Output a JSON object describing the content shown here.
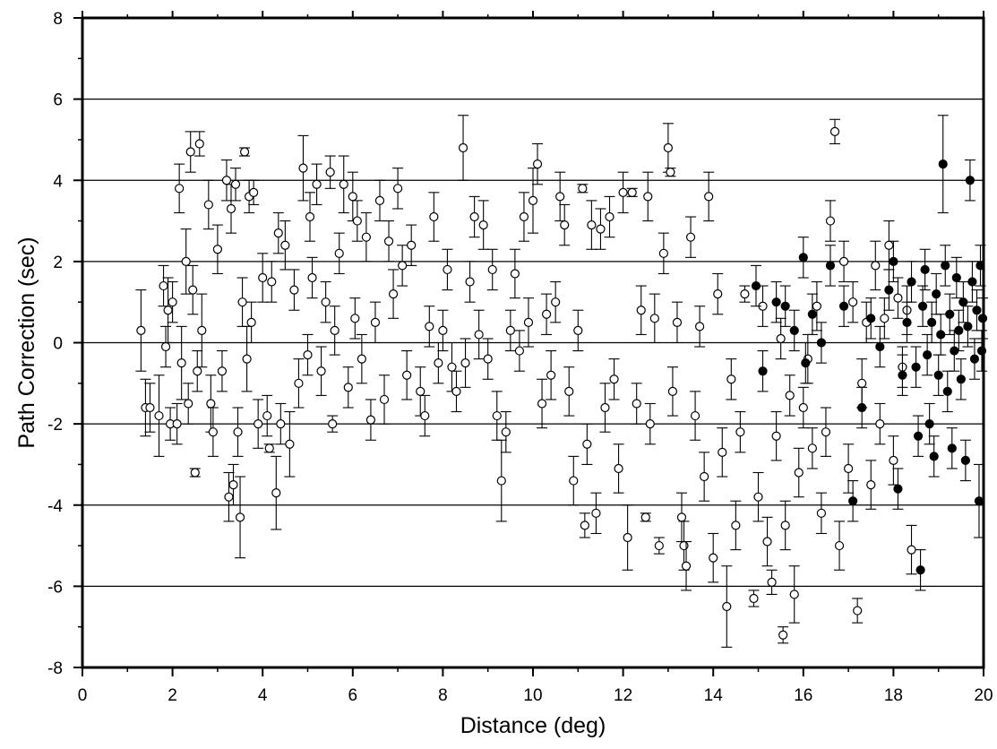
{
  "chart_data": {
    "type": "scatter",
    "title": "",
    "xlabel": "Distance (deg)",
    "ylabel": "Path Correction (sec)",
    "xlim": [
      0,
      20
    ],
    "ylim": [
      -8,
      8
    ],
    "x_ticks": [
      0,
      2,
      4,
      6,
      8,
      10,
      12,
      14,
      16,
      18,
      20
    ],
    "y_ticks": [
      -8,
      -6,
      -4,
      -2,
      0,
      2,
      4,
      6,
      8
    ],
    "grid": "horizontal",
    "legend": "none",
    "marker_colors": {
      "open": "#ffffff",
      "filled": "#000000",
      "line": "#000000"
    },
    "series": [
      {
        "marker": "open circle with error bars",
        "points": [
          [
            1.3,
            0.3,
            1.0
          ],
          [
            1.4,
            -1.6,
            0.7
          ],
          [
            1.5,
            -1.6,
            0.6
          ],
          [
            1.7,
            -1.8,
            1.0
          ],
          [
            1.8,
            1.4,
            0.5
          ],
          [
            1.85,
            -0.1,
            0.5
          ],
          [
            1.9,
            0.8,
            0.8
          ],
          [
            1.95,
            -2.0,
            0.4
          ],
          [
            2.0,
            1.0,
            0.5
          ],
          [
            2.1,
            -2.0,
            0.5
          ],
          [
            2.15,
            3.8,
            0.6
          ],
          [
            2.2,
            -0.5,
            0.9
          ],
          [
            2.3,
            2.0,
            0.8
          ],
          [
            2.35,
            -1.5,
            0.5
          ],
          [
            2.4,
            4.7,
            0.5
          ],
          [
            2.45,
            1.3,
            0.6
          ],
          [
            2.5,
            -3.2,
            0.1
          ],
          [
            2.55,
            -0.7,
            0.5
          ],
          [
            2.6,
            4.9,
            0.3
          ],
          [
            2.65,
            0.3,
            0.9
          ],
          [
            2.8,
            3.4,
            0.6
          ],
          [
            2.85,
            -1.5,
            0.7
          ],
          [
            2.9,
            -2.2,
            0.6
          ],
          [
            3.0,
            2.3,
            0.6
          ],
          [
            3.1,
            -0.7,
            0.5
          ],
          [
            3.2,
            4.0,
            0.5
          ],
          [
            3.25,
            -3.8,
            0.6
          ],
          [
            3.3,
            3.3,
            0.6
          ],
          [
            3.35,
            -3.5,
            0.5
          ],
          [
            3.4,
            3.9,
            0.4
          ],
          [
            3.45,
            -2.2,
            0.6
          ],
          [
            3.5,
            -4.3,
            1.0
          ],
          [
            3.55,
            1.0,
            0.6
          ],
          [
            3.6,
            4.7,
            0.1
          ],
          [
            3.65,
            -0.4,
            0.8
          ],
          [
            3.7,
            3.6,
            0.4
          ],
          [
            3.75,
            0.5,
            0.5
          ],
          [
            3.8,
            3.7,
            0.3
          ],
          [
            3.9,
            -2.0,
            0.6
          ],
          [
            4.0,
            1.6,
            0.6
          ],
          [
            4.1,
            -1.8,
            0.5
          ],
          [
            4.15,
            -2.6,
            0.1
          ],
          [
            4.2,
            1.5,
            0.5
          ],
          [
            4.3,
            -3.7,
            0.9
          ],
          [
            4.35,
            2.7,
            0.5
          ],
          [
            4.4,
            -2.0,
            0.5
          ],
          [
            4.5,
            2.4,
            0.6
          ],
          [
            4.6,
            -2.5,
            0.8
          ],
          [
            4.7,
            1.3,
            0.5
          ],
          [
            4.8,
            -1.0,
            0.6
          ],
          [
            4.9,
            4.3,
            0.8
          ],
          [
            5.0,
            -0.3,
            0.5
          ],
          [
            5.05,
            3.1,
            0.6
          ],
          [
            5.1,
            1.6,
            0.5
          ],
          [
            5.2,
            3.9,
            0.5
          ],
          [
            5.3,
            -0.7,
            0.6
          ],
          [
            5.4,
            1.0,
            0.5
          ],
          [
            5.5,
            4.2,
            0.4
          ],
          [
            5.55,
            -2.0,
            0.2
          ],
          [
            5.6,
            0.3,
            0.6
          ],
          [
            5.7,
            2.2,
            0.5
          ],
          [
            5.8,
            3.9,
            0.7
          ],
          [
            5.9,
            -1.1,
            0.5
          ],
          [
            6.0,
            3.6,
            0.6
          ],
          [
            6.05,
            0.6,
            0.5
          ],
          [
            6.1,
            3.0,
            0.5
          ],
          [
            6.2,
            -0.4,
            0.6
          ],
          [
            6.3,
            2.6,
            0.6
          ],
          [
            6.4,
            -1.9,
            0.5
          ],
          [
            6.5,
            0.5,
            0.5
          ],
          [
            6.6,
            3.5,
            0.5
          ],
          [
            6.7,
            -1.4,
            0.6
          ],
          [
            6.8,
            2.5,
            0.5
          ],
          [
            6.9,
            1.2,
            0.6
          ],
          [
            7.0,
            3.8,
            0.5
          ],
          [
            7.1,
            1.9,
            0.5
          ],
          [
            7.2,
            -0.8,
            0.6
          ],
          [
            7.3,
            2.4,
            0.5
          ],
          [
            7.5,
            -1.2,
            0.6
          ],
          [
            7.6,
            -1.8,
            0.5
          ],
          [
            7.7,
            0.4,
            0.5
          ],
          [
            7.8,
            3.1,
            0.6
          ],
          [
            7.9,
            -0.5,
            0.5
          ],
          [
            8.0,
            0.3,
            0.5
          ],
          [
            8.1,
            1.8,
            0.5
          ],
          [
            8.2,
            -0.6,
            0.6
          ],
          [
            8.3,
            -1.2,
            0.5
          ],
          [
            8.45,
            4.8,
            0.8
          ],
          [
            8.5,
            -0.5,
            0.6
          ],
          [
            8.6,
            1.5,
            0.5
          ],
          [
            8.7,
            3.1,
            0.5
          ],
          [
            8.8,
            0.2,
            0.6
          ],
          [
            8.9,
            2.9,
            0.6
          ],
          [
            9.0,
            -0.4,
            0.5
          ],
          [
            9.1,
            1.8,
            0.5
          ],
          [
            9.2,
            -1.8,
            0.6
          ],
          [
            9.3,
            -3.4,
            1.0
          ],
          [
            9.4,
            -2.2,
            0.5
          ],
          [
            9.5,
            0.3,
            0.5
          ],
          [
            9.6,
            1.7,
            0.6
          ],
          [
            9.7,
            -0.2,
            0.5
          ],
          [
            9.8,
            3.1,
            0.6
          ],
          [
            9.9,
            0.5,
            0.6
          ],
          [
            10.0,
            3.5,
            0.8
          ],
          [
            10.1,
            4.4,
            0.5
          ],
          [
            10.2,
            -1.5,
            0.6
          ],
          [
            10.3,
            0.7,
            0.5
          ],
          [
            10.4,
            -0.8,
            0.6
          ],
          [
            10.5,
            1.0,
            0.5
          ],
          [
            10.6,
            3.6,
            0.6
          ],
          [
            10.7,
            2.9,
            0.5
          ],
          [
            10.8,
            -1.2,
            0.6
          ],
          [
            10.9,
            -3.4,
            0.6
          ],
          [
            11.0,
            0.3,
            0.5
          ],
          [
            11.1,
            3.8,
            0.1
          ],
          [
            11.15,
            -4.5,
            0.3
          ],
          [
            11.2,
            -2.5,
            0.5
          ],
          [
            11.3,
            2.9,
            0.6
          ],
          [
            11.4,
            -4.2,
            0.5
          ],
          [
            11.5,
            2.8,
            0.5
          ],
          [
            11.6,
            -1.6,
            0.6
          ],
          [
            11.7,
            3.1,
            0.5
          ],
          [
            11.8,
            -0.9,
            0.5
          ],
          [
            11.9,
            -3.1,
            0.6
          ],
          [
            12.0,
            3.7,
            0.5
          ],
          [
            12.1,
            -4.8,
            0.8
          ],
          [
            12.2,
            3.7,
            0.1
          ],
          [
            12.3,
            -1.5,
            0.5
          ],
          [
            12.4,
            0.8,
            0.6
          ],
          [
            12.5,
            -4.3,
            0.1
          ],
          [
            12.55,
            3.6,
            0.6
          ],
          [
            12.6,
            -2.0,
            0.5
          ],
          [
            12.7,
            0.6,
            0.6
          ],
          [
            12.8,
            -5.0,
            0.2
          ],
          [
            12.9,
            2.2,
            0.5
          ],
          [
            13.0,
            4.8,
            0.6
          ],
          [
            13.05,
            4.2,
            0.1
          ],
          [
            13.1,
            -1.2,
            0.6
          ],
          [
            13.2,
            0.5,
            0.5
          ],
          [
            13.3,
            -4.3,
            0.6
          ],
          [
            13.35,
            -5.0,
            0.6
          ],
          [
            13.4,
            -5.5,
            0.6
          ],
          [
            13.5,
            2.6,
            0.5
          ],
          [
            13.6,
            -1.8,
            0.6
          ],
          [
            13.7,
            0.4,
            0.5
          ],
          [
            13.8,
            -3.3,
            0.6
          ],
          [
            13.9,
            3.6,
            0.6
          ],
          [
            14.0,
            -5.3,
            0.6
          ],
          [
            14.1,
            1.2,
            0.5
          ],
          [
            14.2,
            -2.7,
            0.6
          ],
          [
            14.3,
            -6.5,
            1.0
          ],
          [
            14.4,
            -0.9,
            0.5
          ],
          [
            14.5,
            -4.5,
            0.6
          ],
          [
            14.6,
            -2.2,
            0.5
          ],
          [
            14.7,
            1.2,
            0.2
          ],
          [
            14.9,
            -6.3,
            0.2
          ],
          [
            15.0,
            -3.8,
            0.6
          ],
          [
            15.1,
            0.9,
            0.5
          ],
          [
            15.2,
            -4.9,
            0.6
          ],
          [
            15.3,
            -5.9,
            0.3
          ],
          [
            15.4,
            -2.3,
            0.6
          ],
          [
            15.5,
            0.1,
            0.5
          ],
          [
            15.55,
            -7.2,
            0.2
          ],
          [
            15.6,
            -4.5,
            0.6
          ],
          [
            15.7,
            -1.3,
            0.5
          ],
          [
            15.8,
            -6.2,
            0.7
          ],
          [
            15.9,
            -3.2,
            0.6
          ],
          [
            16.0,
            -1.6,
            0.5
          ],
          [
            16.1,
            -0.4,
            0.6
          ],
          [
            16.2,
            -2.6,
            0.5
          ],
          [
            16.3,
            0.9,
            0.6
          ],
          [
            16.4,
            -4.2,
            0.5
          ],
          [
            16.5,
            -2.2,
            0.6
          ],
          [
            16.6,
            3.0,
            0.5
          ],
          [
            16.7,
            5.2,
            0.3
          ],
          [
            16.8,
            -5.0,
            0.6
          ],
          [
            16.9,
            2.0,
            0.5
          ],
          [
            17.0,
            -3.1,
            0.6
          ],
          [
            17.1,
            1.0,
            0.5
          ],
          [
            17.2,
            -6.6,
            0.3
          ],
          [
            17.3,
            -1.0,
            0.6
          ],
          [
            17.4,
            0.5,
            0.5
          ],
          [
            17.5,
            -3.5,
            0.6
          ],
          [
            17.6,
            1.9,
            0.6
          ],
          [
            17.7,
            -2.0,
            0.5
          ],
          [
            17.8,
            0.6,
            0.5
          ],
          [
            17.9,
            2.4,
            0.6
          ],
          [
            18.0,
            -2.9,
            0.6
          ],
          [
            18.1,
            1.1,
            0.5
          ],
          [
            18.2,
            -0.6,
            0.5
          ],
          [
            18.3,
            0.8,
            0.6
          ],
          [
            18.4,
            -5.1,
            0.6
          ]
        ]
      },
      {
        "marker": "filled circle with error bars",
        "points": [
          [
            14.95,
            1.4,
            0.5
          ],
          [
            15.1,
            -0.7,
            0.5
          ],
          [
            15.4,
            1.0,
            0.5
          ],
          [
            15.6,
            0.9,
            0.5
          ],
          [
            15.8,
            0.3,
            0.5
          ],
          [
            16.0,
            2.1,
            0.5
          ],
          [
            16.05,
            -0.5,
            0.5
          ],
          [
            16.2,
            0.7,
            0.5
          ],
          [
            16.4,
            0.0,
            0.5
          ],
          [
            16.6,
            1.9,
            0.5
          ],
          [
            16.9,
            0.9,
            0.5
          ],
          [
            17.1,
            -3.9,
            0.5
          ],
          [
            17.3,
            -1.6,
            0.5
          ],
          [
            17.5,
            0.6,
            0.5
          ],
          [
            17.7,
            -0.1,
            0.5
          ],
          [
            17.9,
            1.3,
            0.5
          ],
          [
            18.0,
            2.0,
            0.5
          ],
          [
            18.1,
            -3.6,
            0.5
          ],
          [
            18.2,
            -0.8,
            0.5
          ],
          [
            18.3,
            0.5,
            0.5
          ],
          [
            18.4,
            1.5,
            0.5
          ],
          [
            18.5,
            -0.6,
            0.5
          ],
          [
            18.55,
            -2.3,
            0.5
          ],
          [
            18.6,
            -5.6,
            0.5
          ],
          [
            18.65,
            0.9,
            0.5
          ],
          [
            18.7,
            1.8,
            0.5
          ],
          [
            18.75,
            -0.3,
            0.5
          ],
          [
            18.8,
            -2.0,
            0.5
          ],
          [
            18.85,
            0.5,
            0.5
          ],
          [
            18.9,
            -2.8,
            0.5
          ],
          [
            18.95,
            1.2,
            0.5
          ],
          [
            19.0,
            -0.8,
            0.5
          ],
          [
            19.05,
            0.2,
            0.5
          ],
          [
            19.1,
            4.4,
            1.2
          ],
          [
            19.15,
            1.9,
            0.5
          ],
          [
            19.2,
            -1.2,
            0.5
          ],
          [
            19.25,
            0.7,
            0.5
          ],
          [
            19.3,
            -2.6,
            0.5
          ],
          [
            19.35,
            -0.2,
            0.5
          ],
          [
            19.4,
            1.6,
            0.5
          ],
          [
            19.45,
            0.3,
            0.5
          ],
          [
            19.5,
            -0.9,
            0.5
          ],
          [
            19.55,
            1.0,
            0.5
          ],
          [
            19.6,
            -2.9,
            0.5
          ],
          [
            19.65,
            0.4,
            0.5
          ],
          [
            19.7,
            4.0,
            0.5
          ],
          [
            19.75,
            1.5,
            0.5
          ],
          [
            19.8,
            -0.4,
            0.5
          ],
          [
            19.85,
            0.8,
            0.5
          ],
          [
            19.9,
            -3.9,
            0.9
          ],
          [
            19.93,
            1.9,
            0.5
          ],
          [
            19.96,
            -0.2,
            0.5
          ],
          [
            19.98,
            0.6,
            0.5
          ]
        ]
      }
    ]
  }
}
